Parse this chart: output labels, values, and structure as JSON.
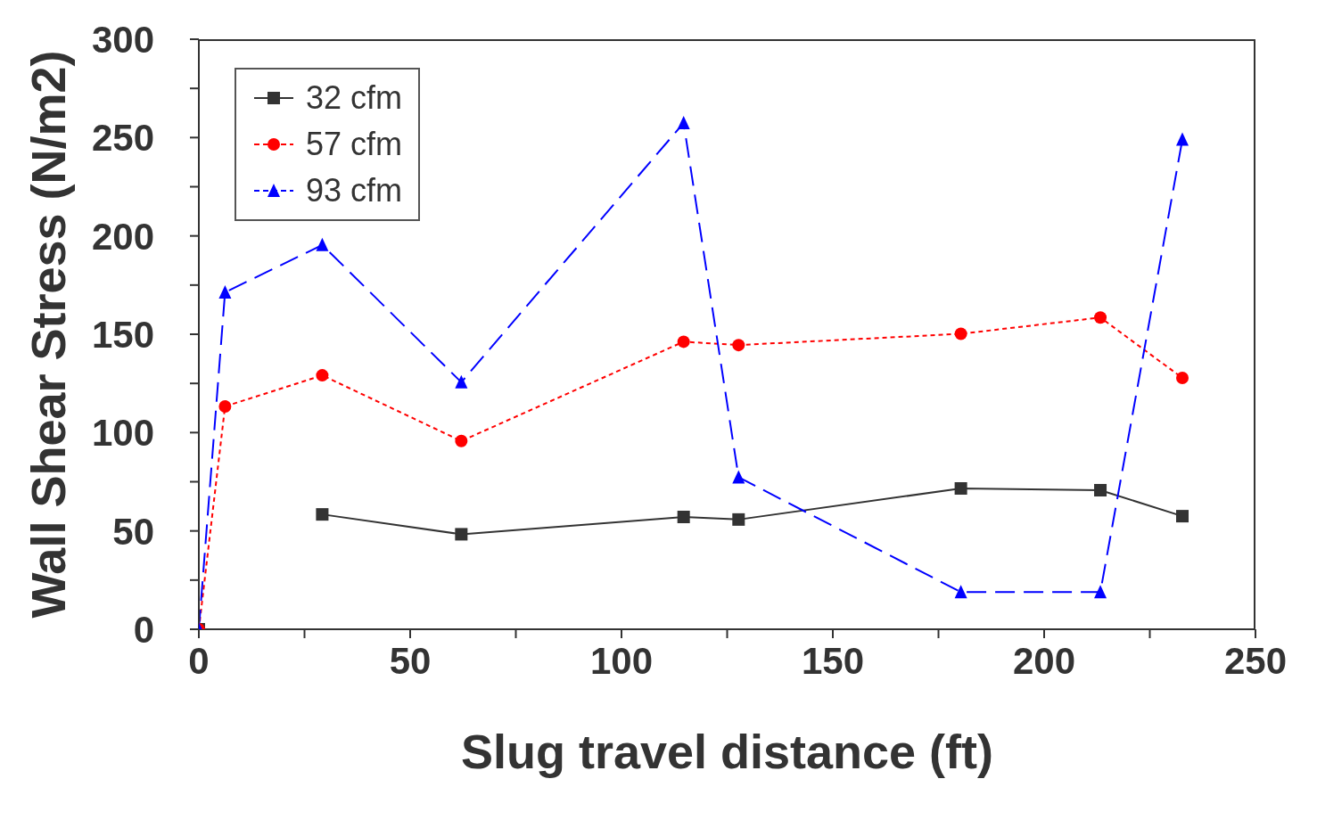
{
  "chart_data": {
    "type": "line",
    "xlabel": "Slug travel distance (ft)",
    "ylabel": "Wall Shear Stress (N/m2)",
    "xlim": [
      0,
      250
    ],
    "ylim": [
      0,
      300
    ],
    "xticks": [
      0,
      {
        "value": 25,
        "label": null
      },
      50,
      {
        "value": 75,
        "label": null
      },
      100,
      {
        "value": 125,
        "label": null
      },
      150,
      {
        "value": 175,
        "label": null
      },
      200,
      {
        "value": 225,
        "label": null
      },
      250
    ],
    "yticks": [
      0,
      {
        "value": 25,
        "label": null
      },
      50,
      {
        "value": 75,
        "label": null
      },
      100,
      {
        "value": 125,
        "label": null
      },
      150,
      {
        "value": 175,
        "label": null
      },
      200,
      {
        "value": 225,
        "label": null
      },
      250,
      {
        "value": 275,
        "label": null
      },
      300
    ],
    "grid": false,
    "legend": "top left",
    "series": [
      {
        "name": "32 cfm",
        "color": "#333333",
        "marker": "square",
        "line_style": "solid",
        "x": [
          0,
          6.2,
          29.2,
          62.1,
          114.7,
          127.7,
          180.3,
          213.3,
          232.7
        ],
        "values": [
          0,
          null,
          58.4,
          48.3,
          57.1,
          55.8,
          71.6,
          70.7,
          57.5
        ]
      },
      {
        "name": "57 cfm",
        "color": "#ff0000",
        "marker": "circle",
        "line_style": "dotted",
        "x": [
          0,
          6.2,
          29.2,
          62.1,
          114.7,
          127.7,
          180.3,
          213.3,
          232.7
        ],
        "values": [
          0,
          113.3,
          129.1,
          95.7,
          146.2,
          144.5,
          150.2,
          158.5,
          127.8
        ]
      },
      {
        "name": "93 cfm",
        "color": "#0000ff",
        "marker": "triangle",
        "line_style": "dashed",
        "x": [
          0,
          6.2,
          29.2,
          62.1,
          114.7,
          127.7,
          180.3,
          213.3,
          232.7
        ],
        "values": [
          0,
          171.3,
          195.4,
          125.6,
          257.4,
          77.3,
          18.9,
          18.9,
          249.0
        ]
      }
    ]
  }
}
